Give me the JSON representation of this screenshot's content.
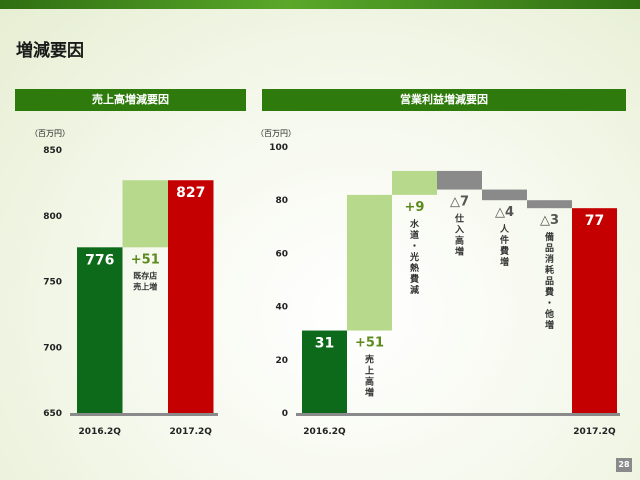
{
  "page": {
    "title": "増減要因",
    "page_number": "28"
  },
  "colors": {
    "dark_green": "#0e6a1b",
    "light_green": "#b7d98b",
    "red": "#c40000",
    "gray": "#8a8a8a",
    "header_green": "#2f7a0c",
    "increase_text": "#5c8a1e"
  },
  "chart_data": [
    {
      "type": "bar",
      "title": "売上高増減要因",
      "unit": "（百万円）",
      "ylim": [
        650,
        850
      ],
      "yticks": [
        "650",
        "700",
        "750",
        "800",
        "850"
      ],
      "bars": [
        {
          "key": "start",
          "kind": "total",
          "color": "dark_green",
          "base": 650,
          "value": 776,
          "label": "776",
          "xlabel": "2016.2Q"
        },
        {
          "key": "existing",
          "kind": "increase",
          "color": "light_green",
          "base": 776,
          "value": 827,
          "label": "+51",
          "sublabel": "既存店\n売上増",
          "xlabel": ""
        },
        {
          "key": "end",
          "kind": "total",
          "color": "red",
          "base": 650,
          "value": 827,
          "label": "827",
          "xlabel": "2017.2Q"
        }
      ]
    },
    {
      "type": "bar",
      "title": "営業利益増減要因",
      "unit": "（百万円）",
      "ylim": [
        0,
        100
      ],
      "yticks": [
        "0",
        "20",
        "40",
        "60",
        "80",
        "100"
      ],
      "bars": [
        {
          "key": "start",
          "kind": "total",
          "color": "dark_green",
          "base": 0,
          "value": 31,
          "label": "31",
          "xlabel": "2016.2Q"
        },
        {
          "key": "sales",
          "kind": "increase",
          "color": "light_green",
          "base": 31,
          "value": 82,
          "label": "+51",
          "sublabel": "売上高増",
          "xlabel": ""
        },
        {
          "key": "utilities",
          "kind": "increase",
          "color": "light_green",
          "base": 82,
          "value": 91,
          "label": "+9",
          "sublabel": "水道・光熱費減",
          "xlabel": ""
        },
        {
          "key": "rent",
          "kind": "decrease",
          "color": "gray",
          "base": 91,
          "value": 84,
          "label": "△7",
          "sublabel": "仕入高増",
          "xlabel": ""
        },
        {
          "key": "labor",
          "kind": "decrease",
          "color": "gray",
          "base": 84,
          "value": 80,
          "label": "△4",
          "sublabel": "人件費増",
          "xlabel": ""
        },
        {
          "key": "supplies",
          "kind": "decrease",
          "color": "gray",
          "base": 80,
          "value": 77,
          "label": "△3",
          "sublabel": "備品消耗品費・他増",
          "xlabel": ""
        },
        {
          "key": "end",
          "kind": "total",
          "color": "red",
          "base": 0,
          "value": 77,
          "label": "77",
          "xlabel": "2017.2Q"
        }
      ]
    }
  ]
}
